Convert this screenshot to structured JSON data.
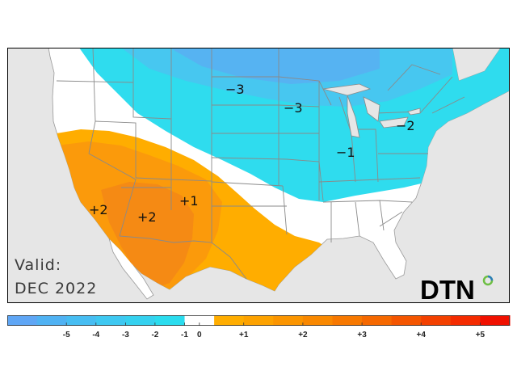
{
  "valid": {
    "line1": "Valid:",
    "line2": "DEC 2022"
  },
  "logo": {
    "text": "DTN"
  },
  "colors": {
    "ocean": "#e6e6e6",
    "land": "#ffffff",
    "border": "#8a8a8a",
    "cold_dark": "#55aaf2",
    "cold_light": "#22e2ec",
    "warm_light": "#ffad00",
    "warm_mid": "#fb9a0b",
    "warm_dark": "#f57f14",
    "logo_green": "#6ebf44",
    "logo_blue": "#2a7db8"
  },
  "map_labels": [
    {
      "id": "label-north-plains",
      "text": "−3"
    },
    {
      "id": "label-upper-midwest",
      "text": "−3"
    },
    {
      "id": "label-northeast",
      "text": "−2"
    },
    {
      "id": "label-ohio-valley",
      "text": "−1"
    },
    {
      "id": "label-california",
      "text": "+2"
    },
    {
      "id": "label-arizona",
      "text": "+2"
    },
    {
      "id": "label-new-mexico",
      "text": "+1"
    }
  ],
  "legend": {
    "ticks": [
      "-5",
      "-4",
      "-3",
      "-2",
      "-1",
      "0",
      "+1",
      "+2",
      "+3",
      "+4",
      "+5"
    ],
    "colors": [
      "#5fa6f5",
      "#50b2f3",
      "#47bdf2",
      "#3ec8f1",
      "#35d1ef",
      "#2bdcee",
      "#ffffff",
      "#ffad00",
      "#fda200",
      "#fb9500",
      "#f98800",
      "#f77800",
      "#f56800",
      "#f45500",
      "#f34000",
      "#f42b00",
      "#f01000"
    ]
  }
}
